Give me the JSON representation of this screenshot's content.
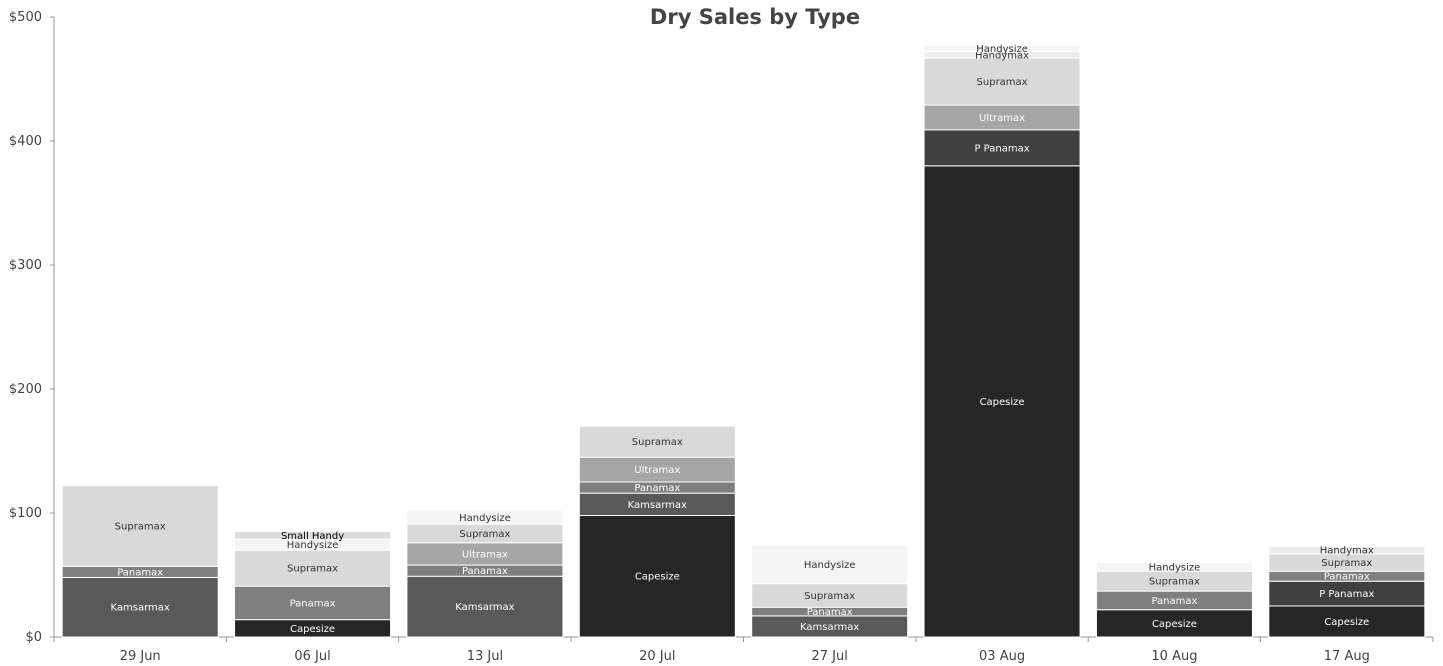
{
  "chart_data": {
    "type": "bar",
    "stacked": true,
    "title": "Dry Sales by Type",
    "xlabel": "",
    "ylabel": "",
    "ylim": [
      0,
      500
    ],
    "yticks": [
      "$0",
      "$100",
      "$200",
      "$300",
      "$400",
      "$500"
    ],
    "yticks_values": [
      0,
      100,
      200,
      300,
      400,
      500
    ],
    "grid": false,
    "legend": "none",
    "categories": [
      "29 Jun",
      "06 Jul",
      "13 Jul",
      "20 Jul",
      "27 Jul",
      "03 Aug",
      "10 Aug",
      "17 Aug"
    ],
    "series": [
      {
        "name": "Capesize",
        "color": "#262626",
        "text_color": "#ffffff",
        "values": [
          0,
          14,
          0,
          98,
          0,
          380,
          22,
          25
        ]
      },
      {
        "name": "Kamsarmax",
        "color": "#595959",
        "text_color": "#ffffff",
        "values": [
          48,
          0,
          49,
          18,
          17,
          0,
          0,
          0
        ]
      },
      {
        "name": "P Panamax",
        "color": "#404040",
        "text_color": "#ffffff",
        "values": [
          0,
          0,
          0,
          0,
          0,
          29,
          0,
          20
        ]
      },
      {
        "name": "Panamax",
        "color": "#7f7f7f",
        "text_color": "#ffffff",
        "values": [
          9,
          27,
          9,
          9,
          7,
          0,
          15,
          8
        ]
      },
      {
        "name": "Ultramax",
        "color": "#a6a6a6",
        "text_color": "#ffffff",
        "values": [
          0,
          0,
          18,
          20,
          0,
          20,
          0,
          0
        ]
      },
      {
        "name": "Supramax",
        "color": "#d9d9d9",
        "text_color": "#333333",
        "values": [
          65,
          29,
          15,
          25,
          19,
          38,
          16,
          14
        ]
      },
      {
        "name": "Handymax",
        "color": "#ebebeb",
        "text_color": "#333333",
        "values": [
          0,
          0,
          0,
          0,
          0,
          5,
          0,
          6
        ]
      },
      {
        "name": "Handysize",
        "color": "#f5f5f5",
        "text_color": "#333333",
        "values": [
          0,
          9,
          11,
          0,
          31,
          5,
          7,
          0
        ]
      },
      {
        "name": "Small Handy",
        "color": "#dcdcdc",
        "text_color": "#000000",
        "values": [
          0,
          6,
          0,
          0,
          0,
          0,
          0,
          0
        ]
      }
    ]
  }
}
